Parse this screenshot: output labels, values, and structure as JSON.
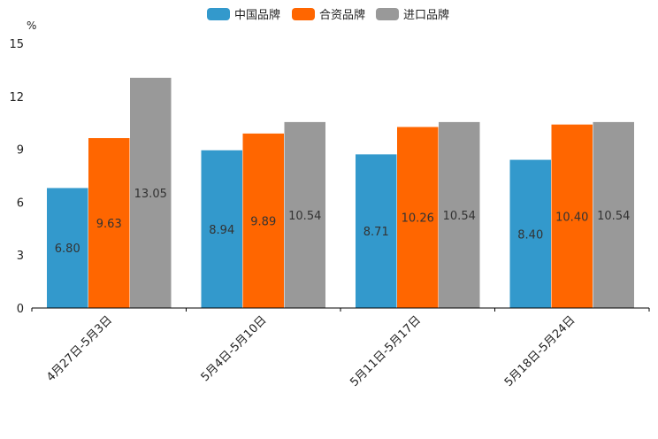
{
  "chart_data": {
    "type": "bar",
    "title": "",
    "xlabel": "",
    "ylabel": "%",
    "ylim": [
      0,
      15
    ],
    "yticks": [
      0,
      3,
      6,
      9,
      12,
      15
    ],
    "legend_position": "top-center",
    "categories": [
      "4月27日-5月3日",
      "5月4日-5月10日",
      "5月11日-5月17日",
      "5月18日-5月24日"
    ],
    "series": [
      {
        "name": "中国品牌",
        "color": "#3399cc",
        "values": [
          6.8,
          8.94,
          8.71,
          8.4
        ],
        "labels": [
          "6.80",
          "8.94",
          "8.71",
          "8.40"
        ]
      },
      {
        "name": "合资品牌",
        "color": "#ff6600",
        "values": [
          9.63,
          9.89,
          10.26,
          10.4
        ],
        "labels": [
          "9.63",
          "9.89",
          "10.26",
          "10.40"
        ]
      },
      {
        "name": "进口品牌",
        "color": "#999999",
        "values": [
          13.05,
          10.54,
          10.54,
          10.54
        ],
        "labels": [
          "13.05",
          "10.54",
          "10.54",
          "10.54"
        ]
      }
    ]
  }
}
